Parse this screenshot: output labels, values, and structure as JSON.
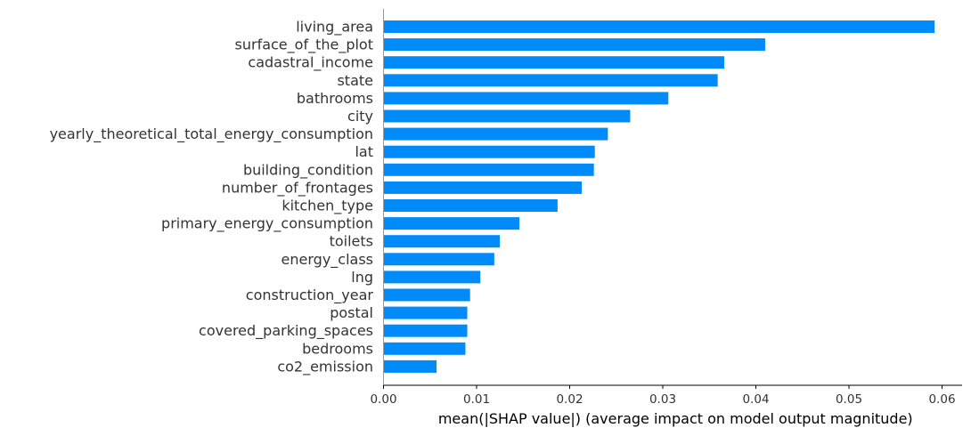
{
  "chart_data": {
    "type": "bar",
    "orientation": "horizontal",
    "title": "",
    "xlabel": "mean(|SHAP value|) (average impact on model output magnitude)",
    "ylabel": "",
    "xlim": [
      0,
      0.062
    ],
    "xticks": [
      0,
      0.01,
      0.02,
      0.03,
      0.04,
      0.05,
      0.06
    ],
    "xtick_labels": [
      "0.00",
      "0.01",
      "0.02",
      "0.03",
      "0.04",
      "0.05",
      "0.06"
    ],
    "grid": false,
    "bar_color": "#008bfb",
    "categories": [
      "living_area",
      "surface_of_the_plot",
      "cadastral_income",
      "state",
      "bathrooms",
      "city",
      "yearly_theoretical_total_energy_consumption",
      "lat",
      "building_condition",
      "number_of_frontages",
      "kitchen_type",
      "primary_energy_consumption",
      "toilets",
      "energy_class",
      "lng",
      "construction_year",
      "postal",
      "covered_parking_spaces",
      "bedrooms",
      "co2_emission"
    ],
    "values": [
      0.0592,
      0.041,
      0.0366,
      0.0359,
      0.0306,
      0.0265,
      0.0241,
      0.0227,
      0.0226,
      0.0213,
      0.0187,
      0.0146,
      0.0125,
      0.0119,
      0.0104,
      0.0093,
      0.009,
      0.009,
      0.0088,
      0.0057
    ]
  }
}
